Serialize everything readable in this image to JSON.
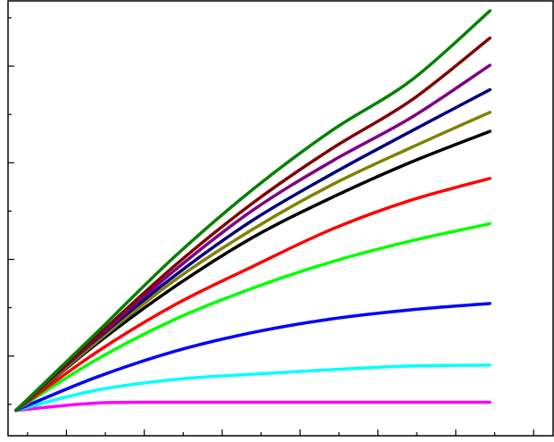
{
  "chart_data": {
    "type": "line",
    "title": "",
    "xlabel": "",
    "ylabel": "",
    "x": [
      0,
      1,
      2,
      3,
      4,
      5,
      6
    ],
    "xlim": [
      -0.1,
      6.8
    ],
    "ylim": [
      -0.25,
      4.55
    ],
    "x_tick_count": 14,
    "y_tick_count": 9,
    "grid": false,
    "legend": "none",
    "series": [
      {
        "color": "#ff00ff",
        "values": [
          0.03,
          0.11,
          0.12,
          0.12,
          0.12,
          0.12,
          0.12
        ]
      },
      {
        "color": "#00ffff",
        "values": [
          0.03,
          0.25,
          0.37,
          0.43,
          0.48,
          0.52,
          0.53
        ]
      },
      {
        "color": "#0000ff",
        "values": [
          0.03,
          0.39,
          0.68,
          0.89,
          1.04,
          1.14,
          1.21
        ]
      },
      {
        "color": "#00ff00",
        "values": [
          0.03,
          0.58,
          1.03,
          1.38,
          1.67,
          1.9,
          2.09
        ]
      },
      {
        "color": "#ff0000",
        "values": [
          0.03,
          0.66,
          1.19,
          1.62,
          2.03,
          2.35,
          2.59
        ]
      },
      {
        "color": "#000000",
        "values": [
          0.03,
          0.75,
          1.39,
          1.94,
          2.38,
          2.77,
          3.11
        ]
      },
      {
        "color": "#808000",
        "values": [
          0.03,
          0.77,
          1.46,
          2.03,
          2.52,
          2.93,
          3.32
        ]
      },
      {
        "color": "#000080",
        "values": [
          0.03,
          0.8,
          1.51,
          2.13,
          2.64,
          3.11,
          3.57
        ]
      },
      {
        "color": "#800080",
        "values": [
          0.03,
          0.81,
          1.57,
          2.24,
          2.78,
          3.26,
          3.84
        ]
      },
      {
        "color": "#800000",
        "values": [
          0.03,
          0.83,
          1.62,
          2.32,
          2.92,
          3.45,
          4.14
        ]
      },
      {
        "color": "#008000",
        "values": [
          0.03,
          0.87,
          1.72,
          2.47,
          3.12,
          3.67,
          4.44
        ]
      }
    ]
  }
}
